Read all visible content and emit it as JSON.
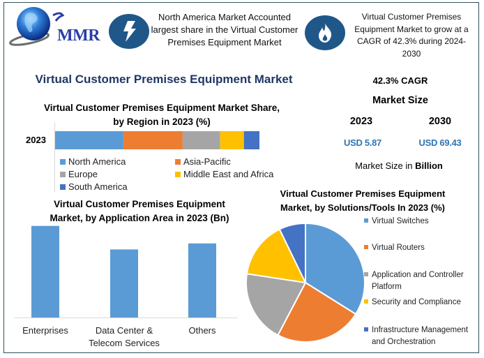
{
  "brand": {
    "logo_text": "MMR"
  },
  "header": {
    "note_left": "North America Market Accounted largest share in the Virtual Customer Premises Equipment Market",
    "note_right": "Virtual Customer Premises Equipment Market to grow at a CAGR of 42.3% during 2024-2030",
    "icon_left": "lightning-bolt-icon",
    "icon_right": "flame-icon"
  },
  "main_title": "Virtual Customer Premises Equipment Market",
  "kpis": {
    "cagr": "42.3% CAGR",
    "market_size_label": "Market Size",
    "year_start": "2023",
    "year_end": "2030",
    "value_start": "USD 5.87",
    "value_end": "USD 69.43",
    "unit_prefix": "Market Size in ",
    "unit_bold": "Billion"
  },
  "colors": {
    "blue": "#5b9bd5",
    "orange": "#ed7d31",
    "gray": "#a5a5a5",
    "yellow": "#ffc000",
    "darkblue": "#4472c4",
    "icon_bg": "#1f5788",
    "title": "#1f3864"
  },
  "chart_data": [
    {
      "type": "bar",
      "stacked": true,
      "orientation": "horizontal",
      "title": "Virtual Customer Premises Equipment Market Share, by Region in 2023 (%)",
      "categories": [
        "2023"
      ],
      "series": [
        {
          "name": "North America",
          "values": [
            33.4
          ]
        },
        {
          "name": "Asia-Pacific",
          "values": [
            29.0
          ]
        },
        {
          "name": "Europe",
          "values": [
            18.4
          ]
        },
        {
          "name": "Middle East and Africa",
          "values": [
            11.6
          ]
        },
        {
          "name": "South America",
          "values": [
            7.6
          ]
        }
      ],
      "xlim": [
        0,
        100
      ],
      "legend": "bottom",
      "grid": false
    },
    {
      "type": "bar",
      "title": "Virtual Customer Premises Equipment Market, by Application Area in 2023 (Bn)",
      "categories": [
        "Enterprises",
        "Data Center & Telecom Services",
        "Others"
      ],
      "category_lines": [
        [
          "Enterprises"
        ],
        [
          "Data Center &",
          "Telecom Services"
        ],
        [
          "Others"
        ]
      ],
      "values": [
        2.3,
        1.71,
        1.86
      ],
      "ylim": [
        0,
        2.4
      ],
      "grid": false
    },
    {
      "type": "pie",
      "title": "Virtual Customer Premises Equipment Market, by Solutions/Tools In 2023 (%)",
      "labels": [
        "Virtual Switches",
        "Virtual Routers",
        "Application and Controller Platform",
        "Security and Compliance",
        "Infrastructure Management and Orchestration"
      ],
      "label_lines": [
        [
          "Virtual Switches"
        ],
        [
          "Virtual Routers"
        ],
        [
          "Application and Controller",
          "Platform"
        ],
        [
          "Security and Compliance"
        ],
        [
          "Infrastructure Management",
          "and Orchestration"
        ]
      ],
      "values": [
        33.9,
        23.8,
        19.7,
        15.4,
        7.2
      ],
      "legend": "right"
    }
  ]
}
